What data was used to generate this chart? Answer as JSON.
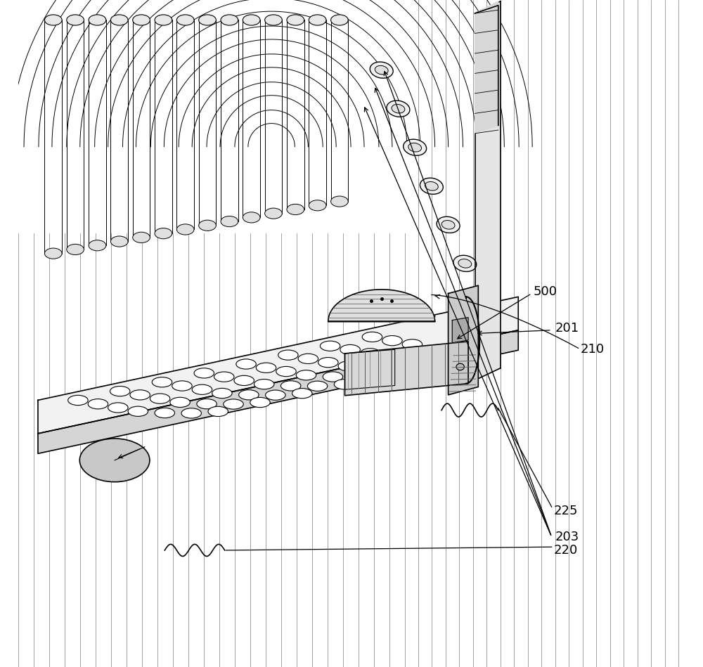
{
  "bg_color": "#ffffff",
  "line_color": "#000000",
  "fig_width": 10.0,
  "fig_height": 9.49,
  "label_fontsize": 13
}
